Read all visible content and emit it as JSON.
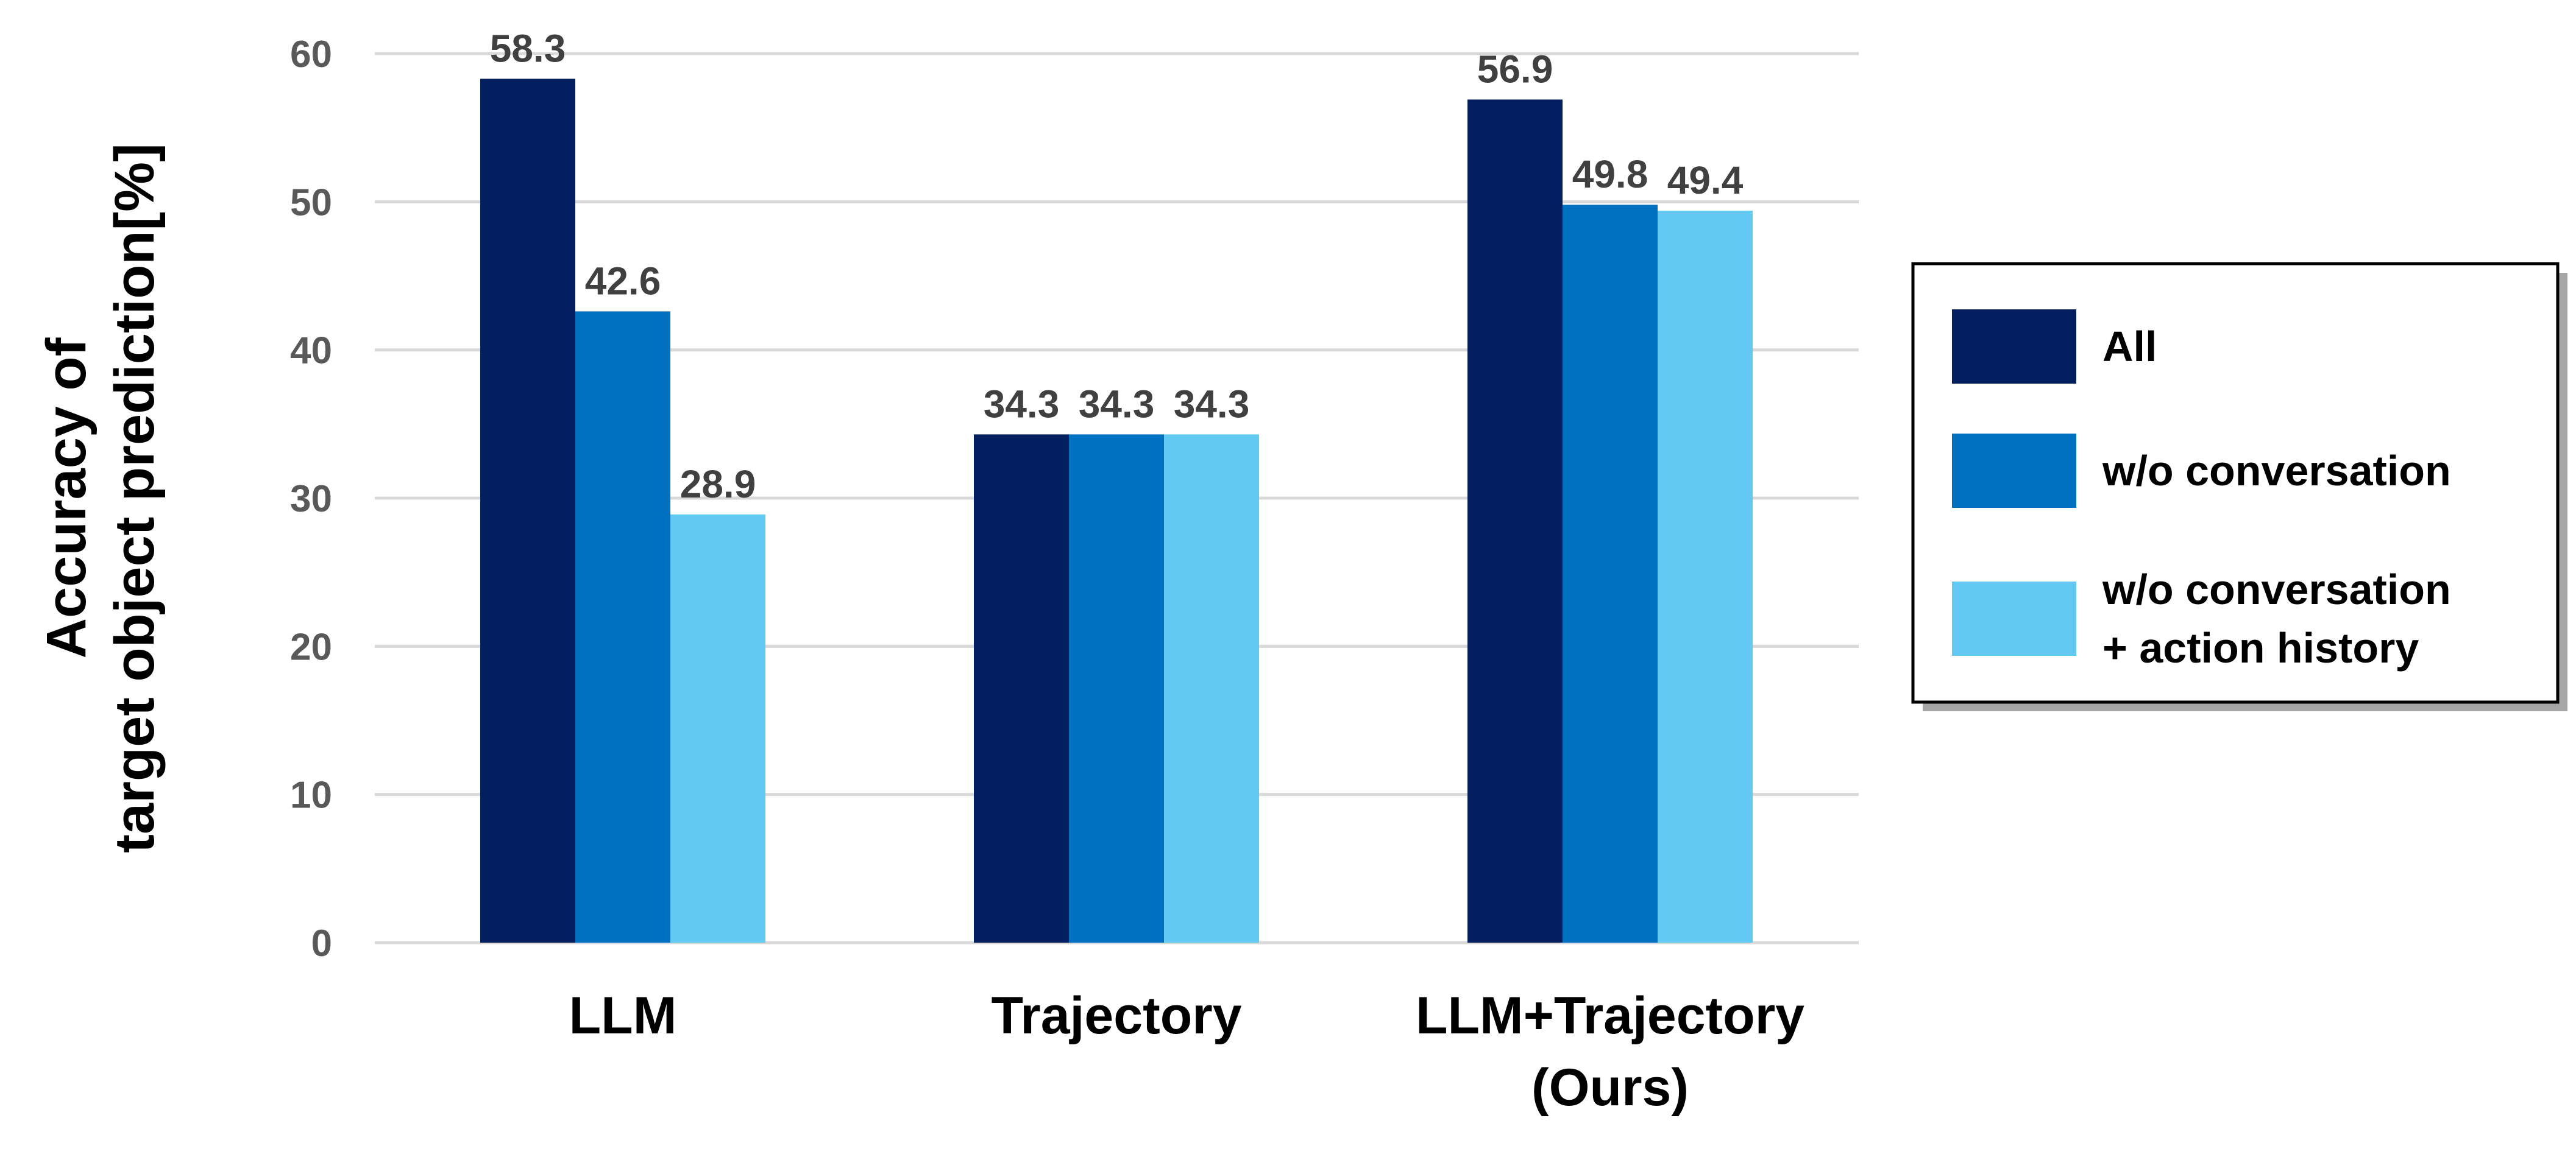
{
  "chart_data": {
    "type": "bar",
    "title": "",
    "xlabel": "",
    "ylabel": [
      "Accuracy of",
      "target object prediction[%]"
    ],
    "ylim": [
      0,
      60
    ],
    "yticks": [
      "0",
      "10",
      "20",
      "30",
      "40",
      "50",
      "60"
    ],
    "grid": true,
    "legend_position": "right",
    "categories": [
      [
        "LLM"
      ],
      [
        "Trajectory"
      ],
      [
        "LLM+Trajectory",
        "(Ours)"
      ]
    ],
    "series": [
      {
        "name": "All",
        "legend_lines": [
          "All"
        ],
        "color": "#041f5f",
        "values": [
          58.3,
          34.3,
          56.9
        ],
        "labels": [
          "58.3",
          "34.3",
          "56.9"
        ]
      },
      {
        "name": "w/o conversation",
        "legend_lines": [
          "w/o conversation"
        ],
        "color": "#0070c0",
        "values": [
          42.6,
          34.3,
          49.8
        ],
        "labels": [
          "42.6",
          "34.3",
          "49.8"
        ]
      },
      {
        "name": "w/o conversation + action history",
        "legend_lines": [
          "w/o conversation",
          "+ action history"
        ],
        "color": "#62c9f2",
        "values": [
          28.9,
          34.3,
          49.4
        ],
        "labels": [
          "28.9",
          "34.3",
          "49.4"
        ]
      }
    ]
  }
}
